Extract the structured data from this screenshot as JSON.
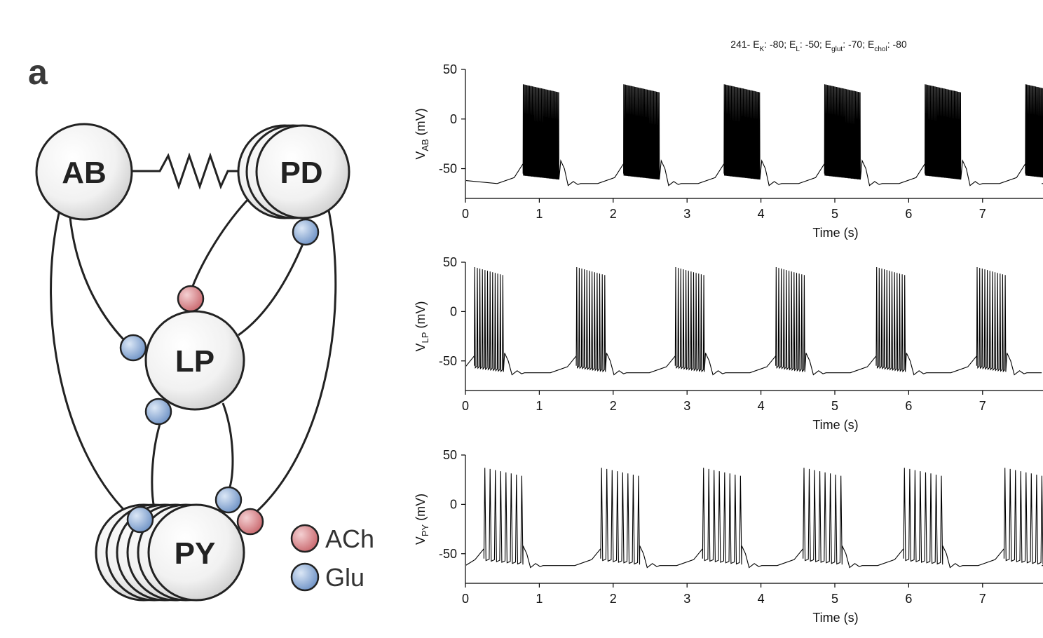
{
  "panel": {
    "letter": "a"
  },
  "network": {
    "neurons": [
      {
        "id": "AB",
        "label": "AB"
      },
      {
        "id": "PD",
        "label": "PD"
      },
      {
        "id": "LP",
        "label": "LP"
      },
      {
        "id": "PY",
        "label": "PY"
      }
    ],
    "connections": [
      {
        "from": "AB",
        "to": "PD",
        "type": "electrical"
      },
      {
        "from": "AB",
        "to": "LP",
        "synapse": "Glu"
      },
      {
        "from": "AB",
        "to": "PY",
        "synapse": "Glu"
      },
      {
        "from": "PD",
        "to": "LP",
        "synapse": "Glu"
      },
      {
        "from": "PD",
        "to": "PY",
        "synapse": "ACh"
      },
      {
        "from": "LP",
        "to": "PD",
        "synapse": "ACh"
      },
      {
        "from": "LP",
        "to": "PY",
        "synapse": "Glu"
      },
      {
        "from": "PY",
        "to": "LP",
        "synapse": "Glu"
      }
    ],
    "legend": [
      {
        "label": "ACh",
        "color": "#d98a8e"
      },
      {
        "label": "Glu",
        "color": "#8fb0d8"
      }
    ]
  },
  "chart_data": [
    {
      "type": "line",
      "title": "241- E_K: -80; E_L: -50; E_glut: -70; E_chol: -80",
      "title_parts": {
        "prefix": "241- E",
        "k": "K",
        "k_val": ": -80; E",
        "l": "L",
        "l_val": ": -50; E",
        "glut": "glut",
        "glut_val": ": -70; E",
        "chol": "chol",
        "chol_val": ": -80"
      },
      "ylabel": "V_AB (mV)",
      "ylabel_main": "V",
      "ylabel_sub": "AB",
      "ylabel_unit": " (mV)",
      "xlabel": "Time (s)",
      "xlim": [
        0,
        7.8
      ],
      "ylim": [
        -80,
        50
      ],
      "xticks": [
        0,
        1,
        2,
        3,
        4,
        5,
        6,
        7
      ],
      "yticks": [
        50,
        0,
        -50
      ],
      "burst_starts": [
        0.78,
        2.14,
        3.5,
        4.86,
        6.22,
        7.58
      ],
      "burst_duration": 0.48,
      "spikes_per_burst": 40,
      "spike_peak": 35,
      "trough": -65
    },
    {
      "type": "line",
      "ylabel": "V_LP (mV)",
      "ylabel_main": "V",
      "ylabel_sub": "LP",
      "ylabel_unit": " (mV)",
      "xlabel": "Time (s)",
      "xlim": [
        0,
        7.8
      ],
      "ylim": [
        -80,
        50
      ],
      "xticks": [
        0,
        1,
        2,
        3,
        4,
        5,
        6,
        7
      ],
      "yticks": [
        50,
        0,
        -50
      ],
      "burst_starts": [
        0.12,
        1.5,
        2.84,
        4.2,
        5.56,
        6.92
      ],
      "burst_duration": 0.38,
      "spikes_per_burst": 12,
      "spike_peak": 45,
      "trough": -62
    },
    {
      "type": "line",
      "ylabel": "V_PY (mV)",
      "ylabel_main": "V",
      "ylabel_sub": "PY",
      "ylabel_unit": " (mV)",
      "xlabel": "Time (s)",
      "xlim": [
        0,
        7.8
      ],
      "ylim": [
        -80,
        50
      ],
      "xticks": [
        0,
        1,
        2,
        3,
        4,
        5,
        6,
        7
      ],
      "yticks": [
        50,
        0,
        -50
      ],
      "burst_starts": [
        0.25,
        1.83,
        3.21,
        4.57,
        5.93,
        7.29
      ],
      "burst_duration": 0.5,
      "spikes_per_burst": 8,
      "spike_peak": 37,
      "trough": -62
    }
  ]
}
